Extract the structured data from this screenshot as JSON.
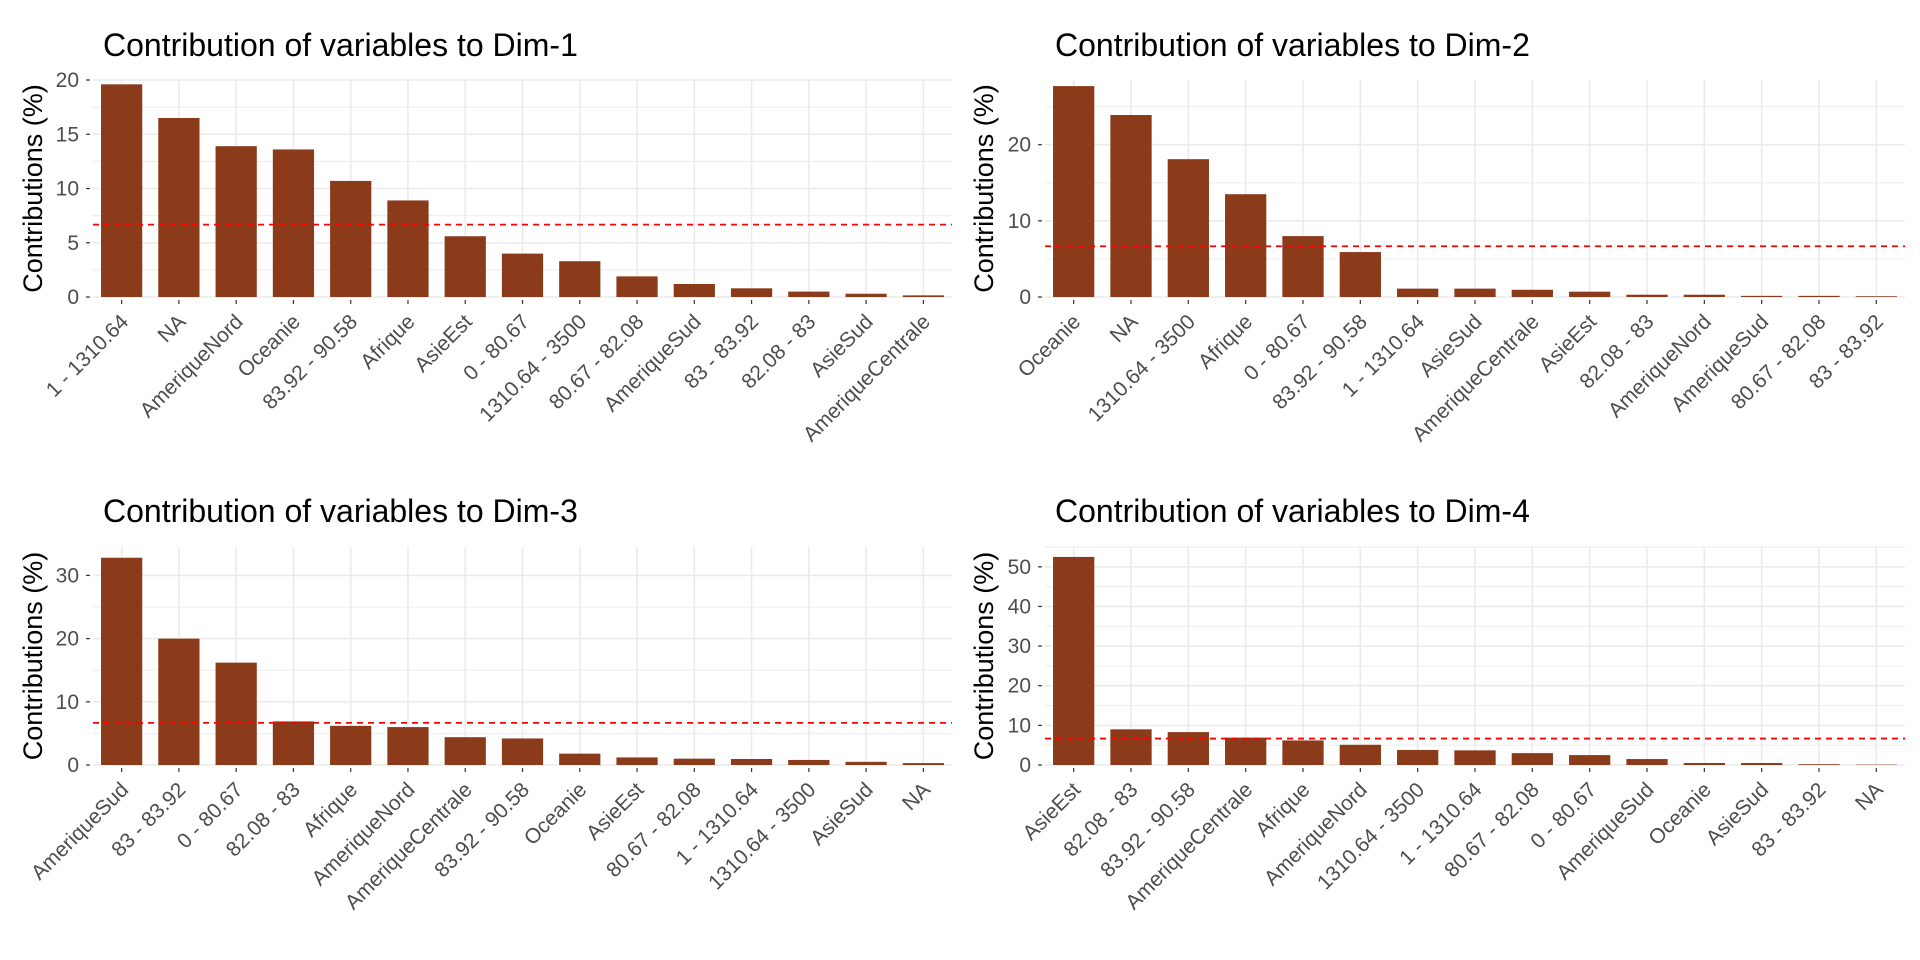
{
  "colors": {
    "bar": "#8B3A1A",
    "reference_line": "#FF0000",
    "grid": "#EBEBEB",
    "tick_text": "#4D4D4D"
  },
  "chart_data": [
    {
      "type": "bar",
      "title": "Contribution of variables to Dim-1",
      "ylabel": "Contributions (%)",
      "xlabel": "",
      "categories": [
        "1 - 1310.64",
        "NA",
        "AmeriqueNord",
        "Oceanie",
        "83.92 - 90.58",
        "Afrique",
        "AsieEst",
        "0 - 80.67",
        "1310.64 - 3500",
        "80.67 - 82.08",
        "AmeriqueSud",
        "83 - 83.92",
        "82.08 - 83",
        "AsieSud",
        "AmeriqueCentrale"
      ],
      "values": [
        19.6,
        16.5,
        13.9,
        13.6,
        10.7,
        8.9,
        5.6,
        4.0,
        3.3,
        1.9,
        1.2,
        0.8,
        0.5,
        0.3,
        0.15
      ],
      "reference_line": 6.67,
      "ylim": [
        0,
        20
      ],
      "yticks": [
        0,
        5,
        10,
        15,
        20
      ],
      "grid": true
    },
    {
      "type": "bar",
      "title": "Contribution of variables to Dim-2",
      "ylabel": "Contributions (%)",
      "xlabel": "",
      "categories": [
        "Oceanie",
        "NA",
        "1310.64 - 3500",
        "Afrique",
        "0 - 80.67",
        "83.92 - 90.58",
        "1 - 1310.64",
        "AsieSud",
        "AmeriqueCentrale",
        "AsieEst",
        "82.08 - 83",
        "AmeriqueNord",
        "AmeriqueSud",
        "80.67 - 82.08",
        "83 - 83.92"
      ],
      "values": [
        27.7,
        23.9,
        18.1,
        13.5,
        8.0,
        5.9,
        1.1,
        1.1,
        0.95,
        0.7,
        0.3,
        0.3,
        0.15,
        0.15,
        0.1
      ],
      "reference_line": 6.67,
      "ylim": [
        0,
        28.5
      ],
      "yticks": [
        0,
        10,
        20
      ],
      "grid": true
    },
    {
      "type": "bar",
      "title": "Contribution of variables to Dim-3",
      "ylabel": "Contributions (%)",
      "xlabel": "",
      "categories": [
        "AmeriqueSud",
        "83 - 83.92",
        "0 - 80.67",
        "82.08 - 83",
        "Afrique",
        "AmeriqueNord",
        "AmeriqueCentrale",
        "83.92 - 90.58",
        "Oceanie",
        "AsieEst",
        "80.67 - 82.08",
        "1 - 1310.64",
        "1310.64 - 3500",
        "AsieSud",
        "NA"
      ],
      "values": [
        32.8,
        20.0,
        16.2,
        6.9,
        6.2,
        6.0,
        4.4,
        4.2,
        1.8,
        1.2,
        1.0,
        0.95,
        0.8,
        0.5,
        0.3
      ],
      "reference_line": 6.67,
      "ylim": [
        0,
        34.5
      ],
      "yticks": [
        0,
        10,
        20,
        30
      ],
      "grid": true
    },
    {
      "type": "bar",
      "title": "Contribution of variables to Dim-4",
      "ylabel": "Contributions (%)",
      "xlabel": "",
      "categories": [
        "AsieEst",
        "82.08 - 83",
        "83.92 - 90.58",
        "AmeriqueCentrale",
        "Afrique",
        "AmeriqueNord",
        "1310.64 - 3500",
        "1 - 1310.64",
        "80.67 - 82.08",
        "0 - 80.67",
        "AmeriqueSud",
        "Oceanie",
        "AsieSud",
        "83 - 83.92",
        "NA"
      ],
      "values": [
        52.5,
        9.0,
        8.3,
        6.9,
        6.2,
        5.1,
        3.8,
        3.7,
        3.0,
        2.5,
        1.5,
        0.5,
        0.5,
        0.2,
        0.1
      ],
      "reference_line": 6.67,
      "ylim": [
        0,
        55
      ],
      "yticks": [
        0,
        10,
        20,
        30,
        40,
        50
      ],
      "grid": true
    }
  ]
}
